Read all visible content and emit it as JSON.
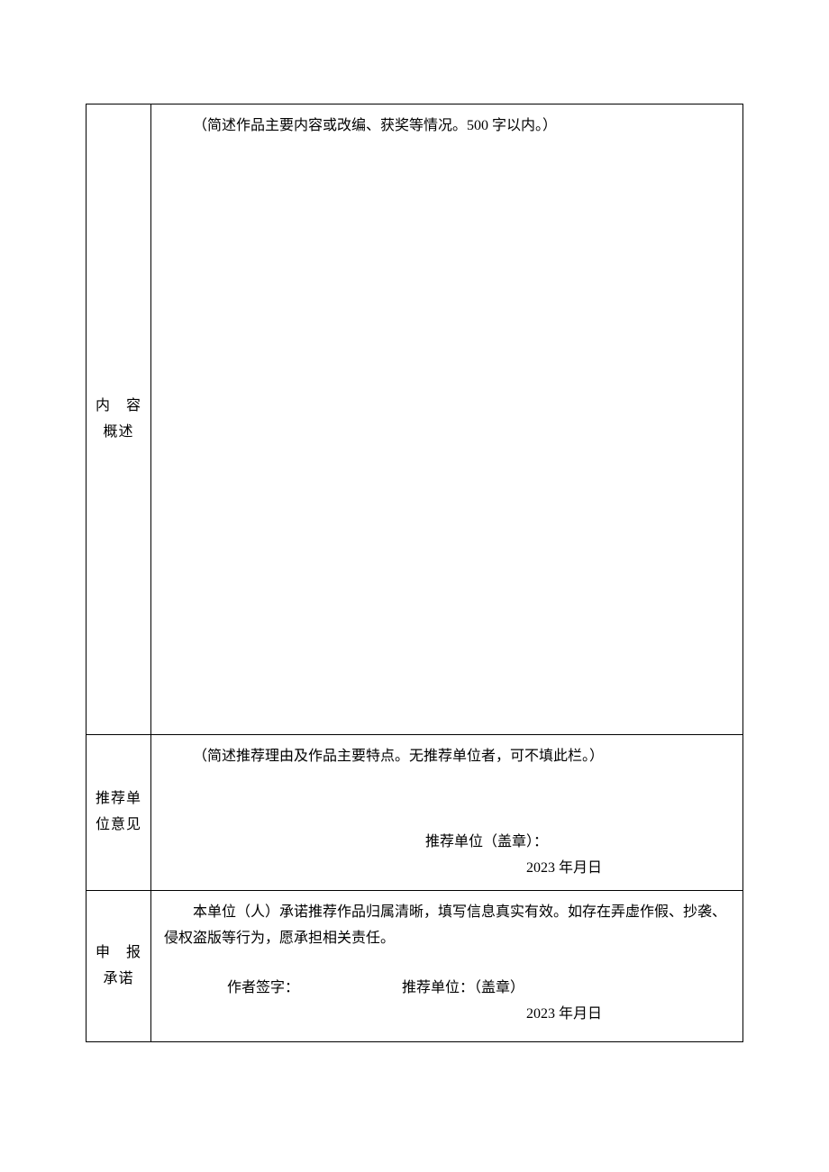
{
  "colors": {
    "page_bg": "#ffffff",
    "border": "#000000",
    "text": "#000000"
  },
  "typography": {
    "font_family": "SimSun / 宋体, serif",
    "base_fontsize_pt": 12,
    "line_height": 1.8
  },
  "form": {
    "rows": [
      {
        "label_chars": [
          "内",
          "容"
        ],
        "label_line2": "概述",
        "hint": "（简述作品主要内容或改编、获奖等情况。500 字以内。）"
      },
      {
        "label_line1": "推荐单",
        "label_line2": "位意见",
        "hint": "（简述推荐理由及作品主要特点。无推荐单位者，可不填此栏。）",
        "seal_label": "推荐单位（盖章）：",
        "date_text": "2023 年月日"
      },
      {
        "label_chars": [
          "申",
          "报"
        ],
        "label_line2": "承诺",
        "pledge": "本单位（人）承诺推荐作品归属清晰，填写信息真实有效。如存在弄虚作假、抄袭、侵权盗版等行为，愿承担相关责任。",
        "author_sign_label": "作者签字：",
        "unit_seal_label": "推荐单位：（盖章）",
        "date_text": "2023 年月日"
      }
    ]
  }
}
